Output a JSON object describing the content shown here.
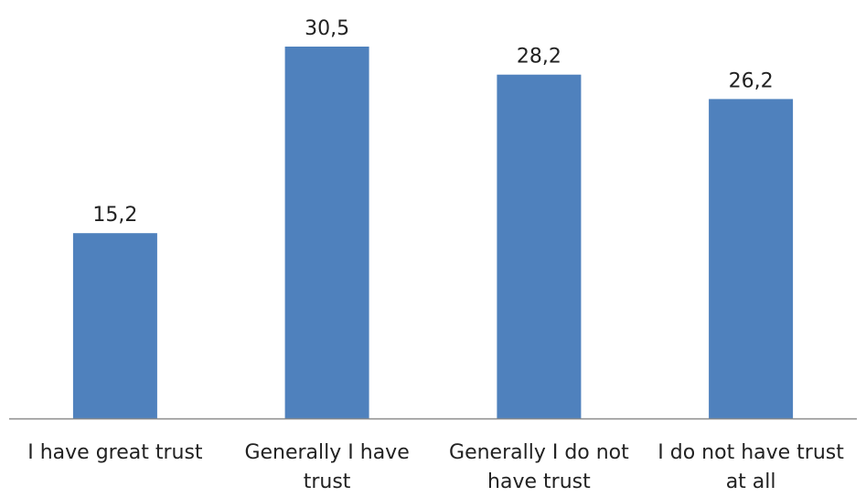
{
  "chart_data": {
    "type": "bar",
    "title": "",
    "xlabel": "",
    "ylabel": "",
    "categories": [
      [
        "I have great trust"
      ],
      [
        "Generally I have",
        "trust"
      ],
      [
        "Generally I do not",
        "have trust"
      ],
      [
        "I do not have trust",
        "at all"
      ]
    ],
    "values": [
      15.2,
      30.5,
      28.2,
      26.2
    ],
    "value_labels": [
      "15,2",
      "30,5",
      "28,2",
      "26,2"
    ],
    "ylim": [
      0,
      30.5
    ],
    "grid": false,
    "legend": "none",
    "colors": {
      "bar": "#4F81BD",
      "axis": "#8c8c8c",
      "text": "#222222"
    }
  }
}
